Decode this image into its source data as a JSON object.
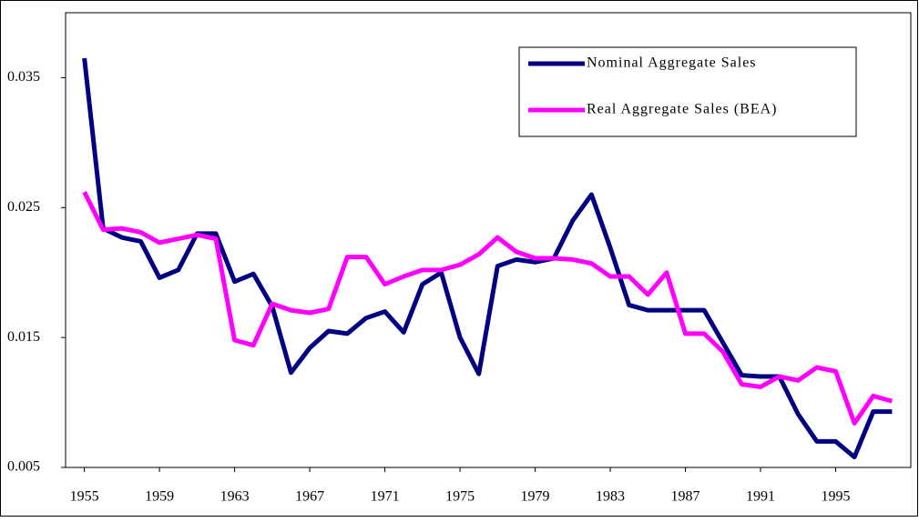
{
  "chart_data": {
    "type": "line",
    "x": [
      1955,
      1956,
      1957,
      1958,
      1959,
      1960,
      1961,
      1962,
      1963,
      1964,
      1965,
      1966,
      1967,
      1968,
      1969,
      1970,
      1971,
      1972,
      1973,
      1974,
      1975,
      1976,
      1977,
      1978,
      1979,
      1980,
      1981,
      1982,
      1983,
      1984,
      1985,
      1986,
      1987,
      1988,
      1989,
      1990,
      1991,
      1992,
      1993,
      1994,
      1995,
      1996,
      1997,
      1998
    ],
    "series": [
      {
        "name": "Nominal Aggregate Sales",
        "color": "#000080",
        "values": [
          0.0365,
          0.0234,
          0.0227,
          0.0224,
          0.0196,
          0.0202,
          0.023,
          0.023,
          0.0193,
          0.0199,
          0.0174,
          0.0123,
          0.0142,
          0.0155,
          0.0153,
          0.0165,
          0.017,
          0.0154,
          0.0191,
          0.02,
          0.015,
          0.0122,
          0.0205,
          0.021,
          0.0208,
          0.0211,
          0.024,
          0.026,
          0.0219,
          0.0175,
          0.0171,
          0.0171,
          0.0171,
          0.0171,
          0.0146,
          0.0121,
          0.012,
          0.012,
          0.0091,
          0.007,
          0.007,
          0.0058,
          0.0093,
          0.0093
        ]
      },
      {
        "name": "Real Aggregate Sales (BEA)",
        "color": "#ff00ff",
        "values": [
          0.0262,
          0.0233,
          0.0234,
          0.0231,
          0.0223,
          0.0226,
          0.0229,
          0.0226,
          0.0148,
          0.0144,
          0.0176,
          0.0171,
          0.0169,
          0.0172,
          0.0212,
          0.0212,
          0.0191,
          0.0197,
          0.0202,
          0.0202,
          0.0206,
          0.0214,
          0.0227,
          0.0216,
          0.0211,
          0.0211,
          0.021,
          0.0207,
          0.0197,
          0.0197,
          0.0183,
          0.02,
          0.0153,
          0.0153,
          0.0139,
          0.0114,
          0.0112,
          0.012,
          0.0117,
          0.0127,
          0.0124,
          0.0084,
          0.0105,
          0.0101
        ]
      }
    ],
    "xlim": [
      1954,
      1999
    ],
    "xticks": [
      1955,
      1959,
      1963,
      1967,
      1971,
      1975,
      1979,
      1983,
      1987,
      1991,
      1995
    ],
    "ylim": [
      0.005,
      0.04
    ],
    "yticks": [
      0.005,
      0.015,
      0.025,
      0.035
    ],
    "legend": "top-right"
  }
}
